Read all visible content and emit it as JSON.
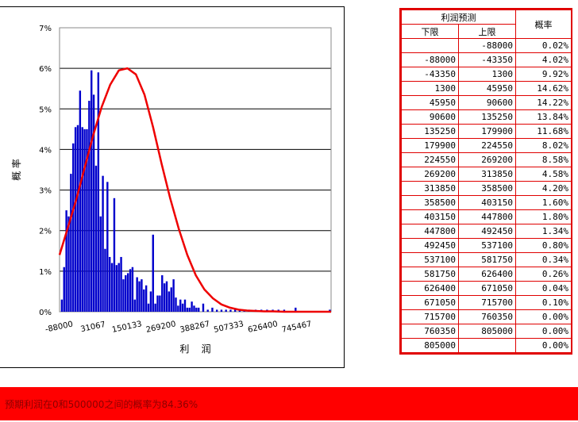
{
  "chart_data": {
    "type": "bar",
    "xlabel": "利    润",
    "ylabel": "概 率",
    "ylim": [
      0,
      7
    ],
    "y_ticks": [
      "0%",
      "1%",
      "2%",
      "3%",
      "4%",
      "5%",
      "6%",
      "7%"
    ],
    "x_tick_labels": [
      "-88000",
      "31067",
      "150133",
      "269200",
      "388267",
      "507333",
      "626400",
      "745467"
    ],
    "x_tick_values": [
      -88000,
      31067,
      150133,
      269200,
      388267,
      507333,
      626400,
      745467
    ],
    "xlim": [
      -88000,
      864533
    ],
    "grid": true,
    "series": [
      {
        "type": "bar",
        "color": "#0000cc",
        "x": [
          -80000,
          -72000,
          -64000,
          -56000,
          -48000,
          -40000,
          -32000,
          -24000,
          -16000,
          -8000,
          0,
          8000,
          16000,
          24000,
          32000,
          40000,
          48000,
          56000,
          64000,
          72000,
          80000,
          88000,
          96000,
          104000,
          112000,
          120000,
          128000,
          136000,
          144000,
          152000,
          160000,
          168000,
          176000,
          184000,
          192000,
          200000,
          208000,
          216000,
          224000,
          232000,
          240000,
          248000,
          256000,
          264000,
          272000,
          280000,
          288000,
          296000,
          304000,
          312000,
          320000,
          328000,
          336000,
          344000,
          352000,
          360000,
          368000,
          376000,
          384000,
          392000,
          400000,
          416000,
          432000,
          448000,
          464000,
          480000,
          496000,
          512000,
          528000,
          544000,
          560000,
          576000,
          600000,
          620000,
          640000,
          660000,
          680000,
          700000,
          740000,
          860000
        ],
        "values": [
          0.3,
          1.1,
          2.5,
          2.35,
          3.4,
          4.15,
          4.55,
          4.6,
          5.45,
          4.55,
          4.5,
          4.5,
          5.2,
          5.95,
          5.35,
          3.6,
          5.9,
          2.35,
          3.35,
          1.55,
          3.2,
          1.35,
          1.2,
          2.8,
          1.15,
          1.2,
          1.35,
          0.8,
          0.9,
          0.95,
          1.05,
          1.1,
          0.3,
          0.85,
          0.75,
          0.8,
          0.55,
          0.65,
          0.2,
          0.5,
          1.9,
          0.2,
          0.4,
          0.4,
          0.9,
          0.7,
          0.75,
          0.5,
          0.6,
          0.8,
          0.35,
          0.15,
          0.3,
          0.2,
          0.3,
          0.1,
          0.1,
          0.25,
          0.15,
          0.1,
          0.1,
          0.2,
          0.05,
          0.1,
          0.05,
          0.05,
          0.05,
          0.05,
          0.05,
          0.05,
          0.05,
          0.05,
          0.05,
          0.05,
          0.05,
          0.05,
          0.05,
          0.05,
          0.1,
          0.05
        ]
      },
      {
        "type": "line",
        "color": "#ee0000",
        "x": [
          -88000,
          -60000,
          -30000,
          0,
          30000,
          60000,
          90000,
          120000,
          150000,
          180000,
          210000,
          240000,
          270000,
          300000,
          330000,
          360000,
          390000,
          420000,
          450000,
          480000,
          510000,
          540000,
          570000,
          600000,
          630000,
          660000,
          700000,
          760000,
          864533
        ],
        "values": [
          1.4,
          2.05,
          2.75,
          3.55,
          4.35,
          5.05,
          5.6,
          5.95,
          6.0,
          5.85,
          5.35,
          4.55,
          3.65,
          2.8,
          2.05,
          1.4,
          0.9,
          0.55,
          0.33,
          0.18,
          0.1,
          0.05,
          0.03,
          0.02,
          0.01,
          0.01,
          0.0,
          0.0,
          0.0
        ]
      }
    ]
  },
  "table": {
    "title": "利润预测",
    "col_lower": "下限",
    "col_upper": "上限",
    "col_prob": "概率",
    "rows": [
      [
        "",
        "-88000",
        "0.02%"
      ],
      [
        "-88000",
        "-43350",
        "4.02%"
      ],
      [
        "-43350",
        "1300",
        "9.92%"
      ],
      [
        "1300",
        "45950",
        "14.62%"
      ],
      [
        "45950",
        "90600",
        "14.22%"
      ],
      [
        "90600",
        "135250",
        "13.84%"
      ],
      [
        "135250",
        "179900",
        "11.68%"
      ],
      [
        "179900",
        "224550",
        "8.02%"
      ],
      [
        "224550",
        "269200",
        "8.58%"
      ],
      [
        "269200",
        "313850",
        "4.58%"
      ],
      [
        "313850",
        "358500",
        "4.20%"
      ],
      [
        "358500",
        "403150",
        "1.60%"
      ],
      [
        "403150",
        "447800",
        "1.80%"
      ],
      [
        "447800",
        "492450",
        "1.34%"
      ],
      [
        "492450",
        "537100",
        "0.80%"
      ],
      [
        "537100",
        "581750",
        "0.34%"
      ],
      [
        "581750",
        "626400",
        "0.26%"
      ],
      [
        "626400",
        "671050",
        "0.04%"
      ],
      [
        "671050",
        "715700",
        "0.10%"
      ],
      [
        "715700",
        "760350",
        "0.00%"
      ],
      [
        "760350",
        "805000",
        "0.00%"
      ],
      [
        "805000",
        "",
        "0.00%"
      ]
    ]
  },
  "banner": {
    "text": "预期利润在0和500000之间的概率为84.36%",
    "color": "#ff0000"
  }
}
